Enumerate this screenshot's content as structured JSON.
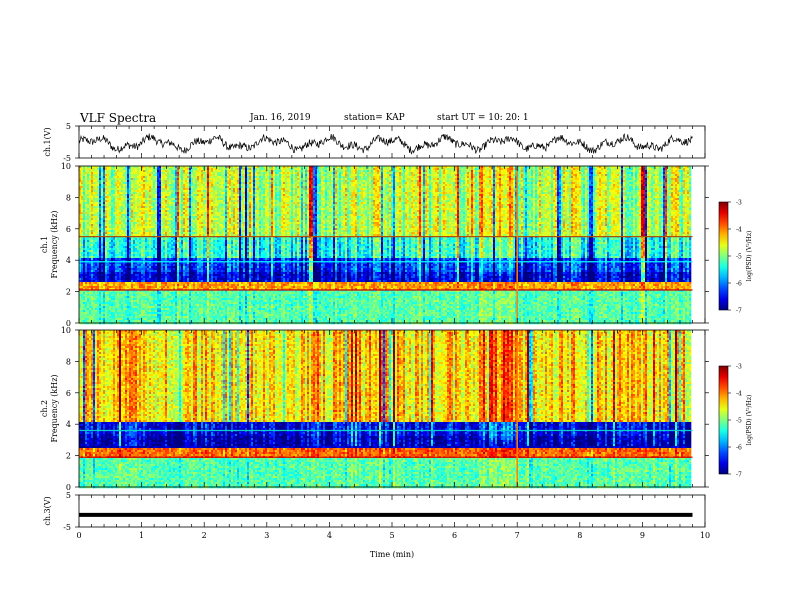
{
  "header": {
    "title": "VLF Spectra",
    "date": "Jan. 16, 2019",
    "station": "station= KAP",
    "start": "start  UT =   10: 20: 1"
  },
  "chart_data": [
    {
      "type": "line",
      "name": "ch1-waveform",
      "ylabel": "ch.1(V)",
      "yticks": [
        "5",
        "-5"
      ],
      "ylim": [
        -5,
        5
      ],
      "xlim": [
        0,
        10
      ]
    },
    {
      "type": "heatmap",
      "name": "ch1-spectrogram",
      "ylabel": "ch.1\nFrequency (kHz)",
      "xlim": [
        0,
        9.8
      ],
      "ylim": [
        0,
        10
      ],
      "yticks": [
        "0",
        "2",
        "4",
        "6",
        "8",
        "10"
      ],
      "colorbar": {
        "label": "log(PSD) (V²/Hz)",
        "ticks": [
          "-3",
          "-4",
          "-5",
          "-6",
          "-7"
        ],
        "range": [
          -7,
          -3
        ]
      }
    },
    {
      "type": "heatmap",
      "name": "ch2-spectrogram",
      "ylabel": "ch.2\nFrequency (kHz)",
      "xlim": [
        0,
        9.8
      ],
      "ylim": [
        0,
        10
      ],
      "yticks": [
        "0",
        "2",
        "4",
        "6",
        "8",
        "10"
      ],
      "colorbar": {
        "label": "log(PSD) (V²/Hz)",
        "ticks": [
          "-3",
          "-4",
          "-5",
          "-6",
          "-7"
        ],
        "range": [
          -7,
          -3
        ]
      }
    },
    {
      "type": "line",
      "name": "ch3-waveform",
      "ylabel": "ch.3(V)",
      "yticks": [
        "5",
        "-5"
      ],
      "ylim": [
        -5,
        5
      ],
      "xlim": [
        0,
        10
      ],
      "value": -1.2
    }
  ],
  "xaxis": {
    "label": "Time (min)",
    "ticks": [
      "0",
      "1",
      "2",
      "3",
      "4",
      "5",
      "6",
      "7",
      "8",
      "9",
      "10"
    ],
    "range": [
      0,
      10
    ]
  }
}
